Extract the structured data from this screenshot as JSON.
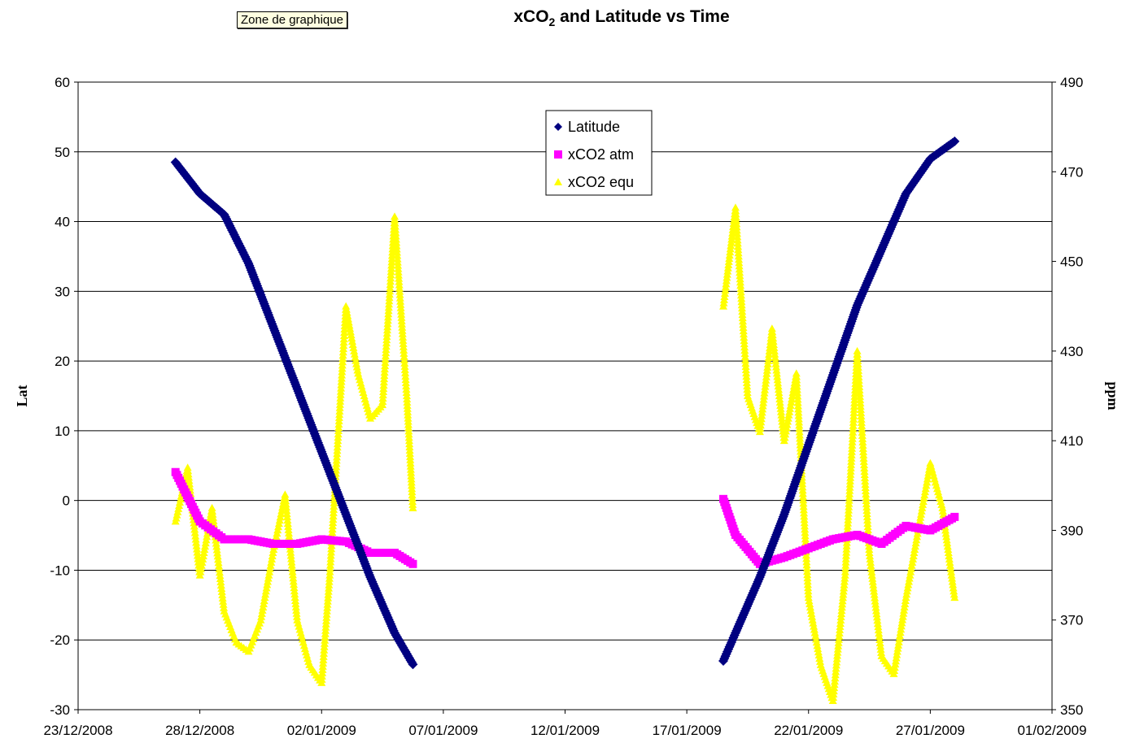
{
  "tooltip": "Zone de graphique",
  "chart_data": {
    "type": "scatter",
    "title": "xCO2 and Latitude vs Time",
    "title_parts": [
      "xCO",
      "2",
      " and Latitude vs Time"
    ],
    "xlabel": "",
    "ylabel_left": "Lat",
    "ylabel_right": "ppm",
    "x_range": [
      "23/12/2008",
      "01/02/2009"
    ],
    "x_ticks": [
      "23/12/2008",
      "28/12/2008",
      "02/01/2009",
      "07/01/2009",
      "12/01/2009",
      "17/01/2009",
      "22/01/2009",
      "27/01/2009",
      "01/02/2009"
    ],
    "y_left_range": [
      -30,
      60
    ],
    "y_left_ticks": [
      -30,
      -20,
      -10,
      0,
      10,
      20,
      30,
      40,
      50,
      60
    ],
    "y_right_range": [
      350,
      490
    ],
    "y_right_ticks": [
      350,
      370,
      390,
      410,
      430,
      450,
      470,
      490
    ],
    "grid": "horizontal",
    "legend_position": "top-center",
    "series": [
      {
        "name": "Latitude",
        "axis": "left",
        "marker": "diamond",
        "color": "#000080",
        "points": [
          [
            "27/12/2008",
            48.5
          ],
          [
            "28/12/2008",
            44
          ],
          [
            "29/12/2008",
            41
          ],
          [
            "30/12/2008",
            34
          ],
          [
            "31/12/2008",
            25
          ],
          [
            "01/01/2009",
            16
          ],
          [
            "02/01/2009",
            7
          ],
          [
            "03/01/2009",
            -2
          ],
          [
            "04/01/2009",
            -11
          ],
          [
            "05/01/2009",
            -19
          ],
          [
            "05/01/2009 18:00",
            -23.5
          ],
          [
            "18/01/2009 12:00",
            -23
          ],
          [
            "19/01/2009",
            -19
          ],
          [
            "20/01/2009",
            -11
          ],
          [
            "21/01/2009",
            -2
          ],
          [
            "22/01/2009",
            8
          ],
          [
            "23/01/2009",
            18
          ],
          [
            "24/01/2009",
            28
          ],
          [
            "25/01/2009",
            36
          ],
          [
            "26/01/2009",
            44
          ],
          [
            "27/01/2009",
            49
          ],
          [
            "28/01/2009",
            51.5
          ]
        ]
      },
      {
        "name": "xCO2 atm",
        "axis": "right",
        "marker": "square",
        "color": "#ff00ff",
        "points": [
          [
            "27/12/2008",
            403
          ],
          [
            "28/12/2008",
            392
          ],
          [
            "29/12/2008",
            388
          ],
          [
            "30/12/2008",
            388
          ],
          [
            "31/12/2008",
            387
          ],
          [
            "01/01/2009",
            387
          ],
          [
            "02/01/2009",
            388
          ],
          [
            "03/01/2009",
            387.5
          ],
          [
            "04/01/2009",
            385
          ],
          [
            "05/01/2009",
            385
          ],
          [
            "05/01/2009 18:00",
            382.5
          ],
          [
            "18/01/2009 12:00",
            397
          ],
          [
            "19/01/2009",
            389
          ],
          [
            "20/01/2009",
            382.5
          ],
          [
            "21/01/2009",
            384
          ],
          [
            "22/01/2009",
            386
          ],
          [
            "23/01/2009",
            388
          ],
          [
            "24/01/2009",
            389
          ],
          [
            "25/01/2009",
            387
          ],
          [
            "26/01/2009",
            391
          ],
          [
            "27/01/2009",
            390
          ],
          [
            "28/01/2009",
            393
          ]
        ]
      },
      {
        "name": "xCO2 equ",
        "axis": "right",
        "marker": "triangle",
        "color": "#ffff00",
        "points": [
          [
            "27/12/2008",
            392
          ],
          [
            "27/12/2008 12:00",
            404
          ],
          [
            "28/12/2008",
            380
          ],
          [
            "28/12/2008 12:00",
            395
          ],
          [
            "29/12/2008",
            372
          ],
          [
            "29/12/2008 12:00",
            365
          ],
          [
            "30/12/2008",
            363
          ],
          [
            "30/12/2008 12:00",
            370
          ],
          [
            "31/12/2008",
            385
          ],
          [
            "31/12/2008 12:00",
            398
          ],
          [
            "01/01/2009",
            370
          ],
          [
            "01/01/2009 12:00",
            360
          ],
          [
            "02/01/2009",
            356
          ],
          [
            "02/01/2009 08:00",
            380
          ],
          [
            "02/01/2009 16:00",
            410
          ],
          [
            "03/01/2009",
            440
          ],
          [
            "03/01/2009 12:00",
            425
          ],
          [
            "04/01/2009",
            415
          ],
          [
            "04/01/2009 12:00",
            418
          ],
          [
            "05/01/2009",
            460
          ],
          [
            "05/01/2009 12:00",
            420
          ],
          [
            "05/01/2009 18:00",
            395
          ],
          [
            "18/01/2009 12:00",
            440
          ],
          [
            "19/01/2009",
            462
          ],
          [
            "19/01/2009 12:00",
            420
          ],
          [
            "20/01/2009",
            412
          ],
          [
            "20/01/2009 12:00",
            435
          ],
          [
            "21/01/2009",
            410
          ],
          [
            "21/01/2009 12:00",
            425
          ],
          [
            "22/01/2009",
            375
          ],
          [
            "22/01/2009 12:00",
            360
          ],
          [
            "23/01/2009",
            352
          ],
          [
            "23/01/2009 12:00",
            380
          ],
          [
            "24/01/2009",
            430
          ],
          [
            "24/01/2009 12:00",
            385
          ],
          [
            "25/01/2009",
            362
          ],
          [
            "25/01/2009 12:00",
            358
          ],
          [
            "26/01/2009",
            375
          ],
          [
            "26/01/2009 12:00",
            390
          ],
          [
            "27/01/2009",
            405
          ],
          [
            "27/01/2009 12:00",
            395
          ],
          [
            "28/01/2009",
            375
          ]
        ]
      }
    ]
  }
}
